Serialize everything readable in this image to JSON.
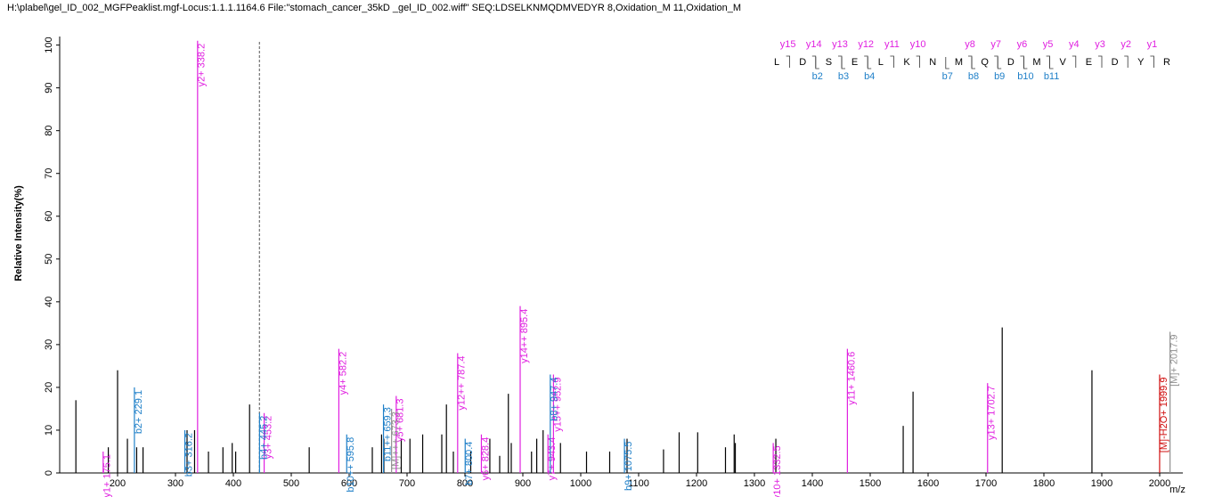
{
  "chart_data": {
    "type": "spectrum",
    "title": "H:\\plabel\\gel_ID_002_MGFPeaklist.mgf-Locus:1.1.1.1164.6 File:\"stomach_cancer_35kD _gel_ID_002.wiff\"  SEQ:LDSELKNMQDMVEDYR 8,Oxidation_M 11,Oxidation_M",
    "xlabel": "m/z",
    "ylabel": "Relative   Intensity(%)",
    "xlim": [
      100,
      2040
    ],
    "ylim": [
      0,
      102
    ],
    "xticks": [
      200,
      300,
      400,
      500,
      600,
      700,
      800,
      900,
      1000,
      1100,
      1200,
      1300,
      1400,
      1500,
      1600,
      1700,
      1800,
      1900,
      2000
    ],
    "yticks": [
      0,
      10,
      20,
      30,
      40,
      50,
      60,
      70,
      80,
      90,
      100
    ],
    "marker_x": 445,
    "peaks": {
      "color": "#000000",
      "x": [
        128,
        184,
        200,
        217,
        233,
        244,
        320,
        333,
        357,
        382,
        398,
        404,
        428,
        531,
        640,
        656,
        660,
        690,
        705,
        727,
        760,
        768,
        780,
        810,
        843,
        860,
        875,
        880,
        915,
        924,
        935,
        965,
        1010,
        1050,
        1080,
        1143,
        1170,
        1202,
        1250,
        1265,
        1267,
        1337,
        1557,
        1574,
        1728,
        1883
      ],
      "values": [
        17,
        6,
        24,
        8,
        6,
        6,
        10,
        10,
        5,
        6,
        7,
        5,
        16,
        6,
        6,
        9,
        8,
        8,
        8,
        9,
        9,
        16,
        5,
        5,
        8,
        4,
        18.5,
        7,
        5,
        8,
        10,
        7,
        5,
        5,
        8,
        5.5,
        9.5,
        9.5,
        6,
        9,
        7,
        8,
        11,
        19,
        34,
        24
      ]
    },
    "annotated": {
      "x": [
        175.1,
        338.2,
        453.2,
        582.2,
        681.3,
        787.4,
        828.4,
        895.4,
        943.4,
        952.9,
        1332.5,
        1460.6,
        1702.7,
        229.1,
        316.2,
        445.2,
        595.8,
        659.3,
        800.4,
        947.4,
        1075.5,
        673.3,
        2017.9,
        1999.9
      ],
      "values": [
        5,
        101,
        14,
        29,
        18,
        28,
        9,
        39,
        9,
        23,
        7,
        29,
        21,
        20,
        10,
        14,
        9,
        16,
        8,
        23,
        8,
        15,
        33,
        23
      ],
      "labels": [
        "y1+  175.1",
        "y2+  338.2",
        "y3+  453.2",
        "y4+  582.2",
        "y5+  681.3",
        "y12++  787.4",
        "y6+  828.4",
        "y14++  895.4",
        "y7+  943.4",
        "y15++  952.9",
        "y10+  1332.5",
        "y11+  1460.6",
        "y13+  1702.7",
        "b2+  229.1",
        "b3+  316.2",
        "b4+  445.2",
        "b10++  595.8",
        "b11++  659.3",
        "b7+  800.4",
        "b8+  947.4",
        "b9+  1075.5",
        "[M]+++  673.3",
        "[M]+  2017.9",
        "[M]-H2O+  1999.9"
      ],
      "colors": [
        "#e020e0",
        "#e020e0",
        "#e020e0",
        "#e020e0",
        "#e020e0",
        "#e020e0",
        "#e020e0",
        "#e020e0",
        "#e020e0",
        "#e020e0",
        "#e020e0",
        "#e020e0",
        "#e020e0",
        "#1e7fc8",
        "#1e7fc8",
        "#1e7fc8",
        "#1e7fc8",
        "#1e7fc8",
        "#1e7fc8",
        "#1e7fc8",
        "#1e7fc8",
        "#909090",
        "#909090",
        "#d01010"
      ]
    }
  },
  "sequence": {
    "residues": [
      "L",
      "D",
      "S",
      "E",
      "L",
      "K",
      "N",
      "M",
      "Q",
      "D",
      "M",
      "V",
      "E",
      "D",
      "Y",
      "R"
    ],
    "y_ions": [
      "y15",
      "y14",
      "y13",
      "y12",
      "y11",
      "y10",
      null,
      "y8",
      "y7",
      "y6",
      "y5",
      "y4",
      "y3",
      "y2",
      "y1"
    ],
    "b_ions": [
      null,
      "b2",
      "b3",
      "b4",
      null,
      null,
      "b7",
      "b8",
      "b9",
      "b10",
      "b11",
      null,
      null,
      null,
      null
    ],
    "y_color": "#e020e0",
    "b_color": "#1e7fc8"
  }
}
